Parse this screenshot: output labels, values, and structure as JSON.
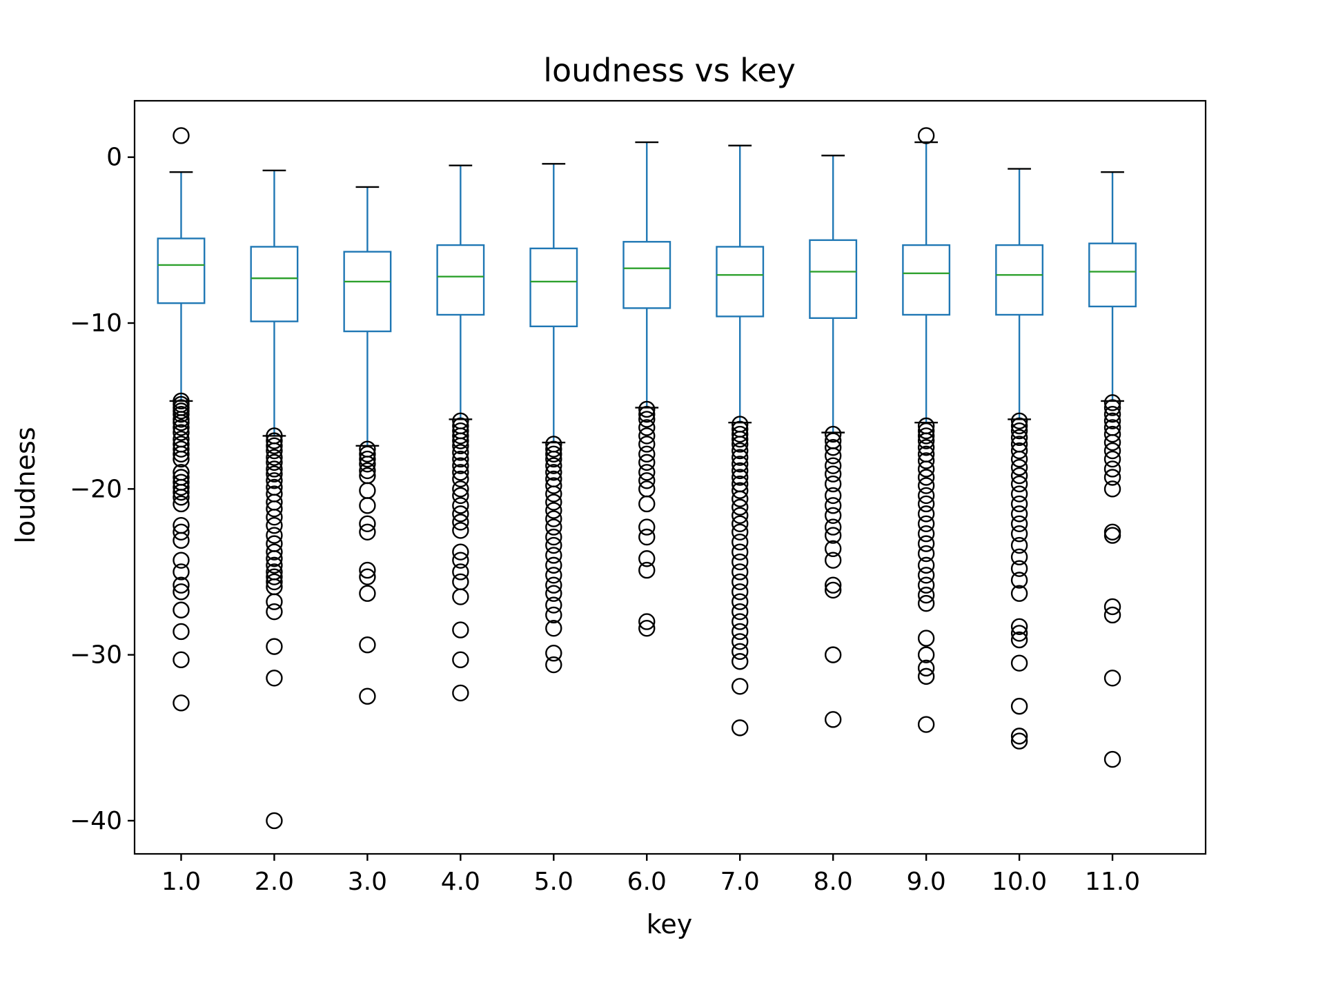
{
  "chart_data": {
    "type": "box",
    "title": "loudness vs key",
    "xlabel": "key",
    "ylabel": "loudness",
    "ylim": [
      -42,
      3.4
    ],
    "yticks": [
      0,
      -10,
      -20,
      -30,
      -40
    ],
    "ytick_labels": [
      "0",
      "−10",
      "−20",
      "−30",
      "−40"
    ],
    "grid": false,
    "legend": "none",
    "colors": {
      "box": "#1f77b4",
      "median": "#2ca02c",
      "whisker_cap": "#000000",
      "flier": "#000000"
    },
    "categories": [
      "1.0",
      "2.0",
      "3.0",
      "4.0",
      "5.0",
      "6.0",
      "7.0",
      "8.0",
      "9.0",
      "10.0",
      "11.0"
    ],
    "boxes": [
      {
        "key": "1.0",
        "whisker_low": -14.7,
        "q1": -8.8,
        "median": -6.5,
        "q3": -4.9,
        "whisker_high": -0.9,
        "fliers": [
          1.3,
          -14.7,
          -14.9,
          -15.1,
          -15.3,
          -15.5,
          -15.8,
          -16.0,
          -16.3,
          -16.6,
          -17.0,
          -17.3,
          -17.6,
          -17.9,
          -18.2,
          -19.0,
          -19.3,
          -19.6,
          -19.9,
          -20.2,
          -20.5,
          -20.9,
          -22.2,
          -22.6,
          -23.1,
          -24.3,
          -25.0,
          -25.8,
          -26.2,
          -27.3,
          -28.6,
          -30.3,
          -32.9
        ]
      },
      {
        "key": "2.0",
        "whisker_low": -16.8,
        "q1": -9.9,
        "median": -7.3,
        "q3": -5.4,
        "whisker_high": -0.8,
        "fliers": [
          -16.8,
          -17.1,
          -17.4,
          -17.7,
          -18.1,
          -18.4,
          -18.8,
          -19.1,
          -19.5,
          -19.9,
          -20.3,
          -20.8,
          -21.2,
          -21.7,
          -22.2,
          -22.8,
          -23.3,
          -23.8,
          -24.2,
          -24.6,
          -25.0,
          -25.3,
          -25.6,
          -25.9,
          -26.8,
          -27.4,
          -29.5,
          -31.4,
          -40.0
        ]
      },
      {
        "key": "3.0",
        "whisker_low": -17.4,
        "q1": -10.5,
        "median": -7.5,
        "q3": -5.7,
        "whisker_high": -1.8,
        "fliers": [
          -17.6,
          -17.9,
          -18.2,
          -18.5,
          -18.9,
          -19.2,
          -20.1,
          -21.0,
          -22.1,
          -22.6,
          -24.9,
          -25.3,
          -26.3,
          -29.4,
          -32.5
        ]
      },
      {
        "key": "4.0",
        "whisker_low": -15.8,
        "q1": -9.5,
        "median": -7.2,
        "q3": -5.3,
        "whisker_high": -0.5,
        "fliers": [
          -15.9,
          -16.2,
          -16.5,
          -16.8,
          -17.1,
          -17.4,
          -17.8,
          -18.2,
          -18.6,
          -19.0,
          -19.4,
          -20.0,
          -20.4,
          -21.0,
          -21.5,
          -22.0,
          -22.5,
          -23.8,
          -24.3,
          -25.0,
          -25.6,
          -26.5,
          -28.5,
          -30.3,
          -32.3
        ]
      },
      {
        "key": "5.0",
        "whisker_low": -17.2,
        "q1": -10.2,
        "median": -7.5,
        "q3": -5.5,
        "whisker_high": -0.4,
        "fliers": [
          -17.3,
          -17.6,
          -17.9,
          -18.2,
          -18.6,
          -19.0,
          -19.4,
          -19.8,
          -20.3,
          -20.8,
          -21.3,
          -21.8,
          -22.3,
          -22.9,
          -23.4,
          -24.0,
          -24.6,
          -25.2,
          -25.8,
          -26.3,
          -27.0,
          -27.6,
          -28.4,
          -29.9,
          -30.6
        ]
      },
      {
        "key": "6.0",
        "whisker_low": -15.1,
        "q1": -9.1,
        "median": -6.7,
        "q3": -5.1,
        "whisker_high": 0.9,
        "fliers": [
          -15.2,
          -15.5,
          -15.8,
          -16.3,
          -16.8,
          -17.3,
          -17.9,
          -18.4,
          -19.0,
          -19.5,
          -20.0,
          -20.9,
          -22.3,
          -22.9,
          -24.2,
          -24.9,
          -28.0,
          -28.4
        ]
      },
      {
        "key": "7.0",
        "whisker_low": -16.0,
        "q1": -9.6,
        "median": -7.1,
        "q3": -5.4,
        "whisker_high": 0.7,
        "fliers": [
          -16.1,
          -16.4,
          -16.7,
          -17.0,
          -17.3,
          -17.7,
          -18.1,
          -18.5,
          -18.9,
          -19.3,
          -19.7,
          -20.1,
          -20.6,
          -21.1,
          -21.6,
          -22.1,
          -22.6,
          -23.2,
          -23.8,
          -24.4,
          -25.0,
          -25.6,
          -26.2,
          -26.8,
          -27.4,
          -28.0,
          -28.6,
          -29.2,
          -29.8,
          -30.4,
          -31.9,
          -34.4
        ]
      },
      {
        "key": "8.0",
        "whisker_low": -16.6,
        "q1": -9.7,
        "median": -6.9,
        "q3": -5.0,
        "whisker_high": 0.1,
        "fliers": [
          -16.7,
          -17.1,
          -17.5,
          -18.0,
          -18.6,
          -19.1,
          -19.7,
          -20.4,
          -21.0,
          -21.6,
          -22.3,
          -22.8,
          -23.6,
          -24.3,
          -25.8,
          -26.1,
          -30.0,
          -33.9
        ]
      },
      {
        "key": "9.0",
        "whisker_low": -16.0,
        "q1": -9.5,
        "median": -7.0,
        "q3": -5.3,
        "whisker_high": 0.9,
        "fliers": [
          1.3,
          -16.2,
          -16.5,
          -16.8,
          -17.1,
          -17.5,
          -17.9,
          -18.3,
          -18.8,
          -19.3,
          -19.8,
          -20.4,
          -20.9,
          -21.5,
          -22.1,
          -22.7,
          -23.3,
          -23.9,
          -24.6,
          -25.2,
          -25.8,
          -26.4,
          -26.9,
          -29.0,
          -30.0,
          -30.8,
          -31.3,
          -34.2
        ]
      },
      {
        "key": "10.0",
        "whisker_low": -15.8,
        "q1": -9.5,
        "median": -7.1,
        "q3": -5.3,
        "whisker_high": -0.7,
        "fliers": [
          -15.9,
          -16.2,
          -16.5,
          -16.9,
          -17.3,
          -17.7,
          -18.2,
          -18.7,
          -19.2,
          -19.7,
          -20.3,
          -20.9,
          -21.5,
          -22.1,
          -22.7,
          -23.4,
          -24.1,
          -24.8,
          -25.5,
          -26.3,
          -28.3,
          -28.7,
          -29.1,
          -30.5,
          -33.1,
          -34.9,
          -35.2
        ]
      },
      {
        "key": "11.0",
        "whisker_low": -14.7,
        "q1": -9.0,
        "median": -6.9,
        "q3": -5.2,
        "whisker_high": -0.9,
        "fliers": [
          -14.8,
          -15.1,
          -15.5,
          -15.9,
          -16.3,
          -16.7,
          -17.2,
          -17.7,
          -18.2,
          -18.8,
          -19.3,
          -20.0,
          -22.6,
          -22.8,
          -27.1,
          -27.6,
          -31.4,
          -36.3
        ]
      }
    ]
  }
}
